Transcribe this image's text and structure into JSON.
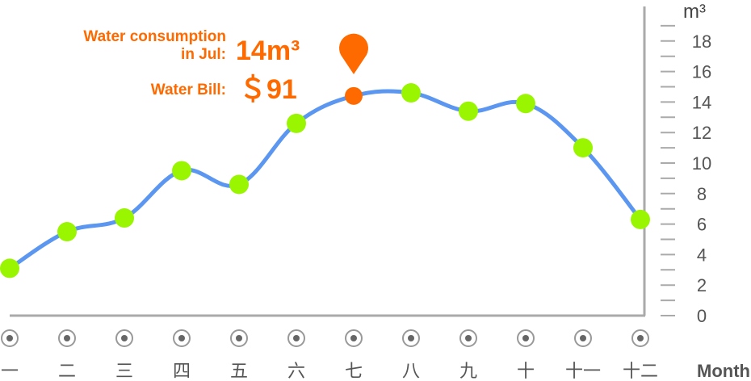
{
  "chart_data": {
    "type": "line",
    "categories": [
      "一",
      "二",
      "三",
      "四",
      "五",
      "六",
      "七",
      "八",
      "九",
      "十",
      "十一",
      "十二"
    ],
    "values": [
      3.1,
      5.5,
      6.4,
      9.5,
      8.6,
      12.6,
      14.4,
      14.6,
      13.4,
      13.9,
      11.0,
      6.3
    ],
    "unit_label": "m³",
    "xlabel": "Month",
    "ylim": [
      0,
      19
    ],
    "y_ticks": [
      "0",
      "2",
      "4",
      "6",
      "8",
      "10",
      "12",
      "14",
      "16",
      "18"
    ],
    "y_axis_side": "right",
    "highlight_index": 6,
    "colors": {
      "line": "#5b96f0",
      "point": "#99f500",
      "highlight": "#ff6a00",
      "axis": "#aaaaaa",
      "text": "#555555"
    }
  },
  "info_panel": {
    "consumption_label_line1": "Water consumption",
    "consumption_label_line2": "in Jul:",
    "consumption_value": "14m³",
    "bill_label": "Water Bill:",
    "bill_value": "＄91"
  }
}
